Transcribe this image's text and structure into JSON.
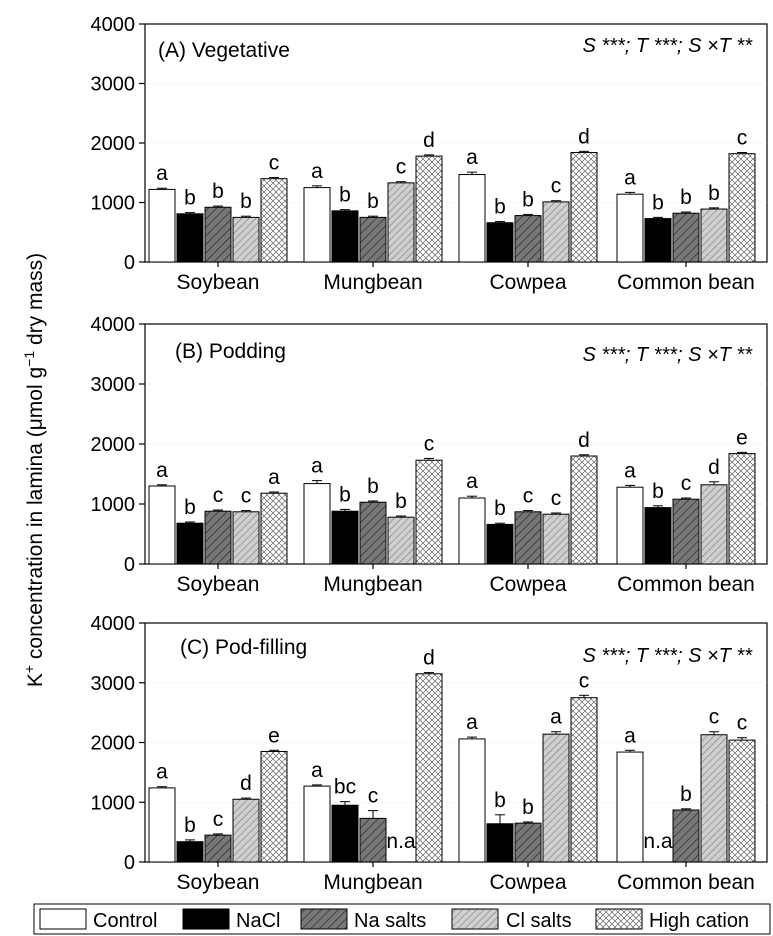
{
  "ylabel_main": "K",
  "ylabel_sup1": "+",
  "ylabel_mid": " concentration in lamina (μmol g",
  "ylabel_sup2": "−1",
  "ylabel_tail": " dry mass)",
  "colors": {
    "Control": "#ffffff",
    "NaCl": "#000000",
    "Na salts": "#777777",
    "Cl salts": "#c8c8c8",
    "High cation": "#ffffff"
  },
  "legend": {
    "entries": [
      "Control",
      "NaCl",
      "Na salts",
      "Cl salts",
      "High cation"
    ],
    "placement": "bottom"
  },
  "chart_data": [
    {
      "type": "bar",
      "title": "(A) Vegetative",
      "annotation": "S ***; T ***; S ×T **",
      "categories": [
        "Soybean",
        "Mungbean",
        "Cowpea",
        "Common bean"
      ],
      "ylim": [
        0,
        4000
      ],
      "yticks": [
        0,
        1000,
        2000,
        3000,
        4000
      ],
      "series": [
        {
          "name": "Control",
          "values": [
            1220,
            1250,
            1470,
            1140
          ],
          "errors": [
            20,
            30,
            40,
            30
          ],
          "letters": [
            "a",
            "a",
            "a",
            "a"
          ]
        },
        {
          "name": "NaCl",
          "values": [
            810,
            860,
            660,
            730
          ],
          "errors": [
            20,
            20,
            20,
            20
          ],
          "letters": [
            "b",
            "b",
            "b",
            "b"
          ]
        },
        {
          "name": "Na salts",
          "values": [
            920,
            750,
            780,
            820
          ],
          "errors": [
            20,
            20,
            20,
            20
          ],
          "letters": [
            "b",
            "b",
            "b",
            "b"
          ]
        },
        {
          "name": "Cl salts",
          "values": [
            750,
            1330,
            1010,
            890
          ],
          "errors": [
            20,
            20,
            20,
            20
          ],
          "letters": [
            "b",
            "c",
            "c",
            "b"
          ]
        },
        {
          "name": "High cation",
          "values": [
            1400,
            1780,
            1840,
            1820
          ],
          "errors": [
            20,
            20,
            20,
            20
          ],
          "letters": [
            "c",
            "d",
            "d",
            "c"
          ]
        }
      ]
    },
    {
      "type": "bar",
      "title": "(B) Podding",
      "annotation": "S ***; T ***; S ×T **",
      "categories": [
        "Soybean",
        "Mungbean",
        "Cowpea",
        "Common bean"
      ],
      "ylim": [
        0,
        4000
      ],
      "yticks": [
        0,
        1000,
        2000,
        3000,
        4000
      ],
      "series": [
        {
          "name": "Control",
          "values": [
            1300,
            1340,
            1100,
            1280
          ],
          "errors": [
            20,
            50,
            30,
            30
          ],
          "letters": [
            "a",
            "a",
            "a",
            "a"
          ]
        },
        {
          "name": "NaCl",
          "values": [
            680,
            880,
            660,
            940
          ],
          "errors": [
            20,
            30,
            20,
            30
          ],
          "letters": [
            "b",
            "b",
            "b",
            "b"
          ]
        },
        {
          "name": "Na salts",
          "values": [
            880,
            1030,
            870,
            1080
          ],
          "errors": [
            20,
            20,
            20,
            20
          ],
          "letters": [
            "c",
            "b",
            "c",
            "c"
          ]
        },
        {
          "name": "Cl salts",
          "values": [
            870,
            780,
            830,
            1320
          ],
          "errors": [
            20,
            20,
            20,
            50
          ],
          "letters": [
            "c",
            "b",
            "c",
            "d"
          ]
        },
        {
          "name": "High cation",
          "values": [
            1180,
            1730,
            1800,
            1840
          ],
          "errors": [
            20,
            30,
            20,
            20
          ],
          "letters": [
            "a",
            "c",
            "d",
            "e"
          ]
        }
      ]
    },
    {
      "type": "bar",
      "title": "(C) Pod-filling",
      "annotation": "S ***; T ***; S ×T **",
      "categories": [
        "Soybean",
        "Mungbean",
        "Cowpea",
        "Common bean"
      ],
      "ylim": [
        0,
        4000
      ],
      "yticks": [
        0,
        1000,
        2000,
        3000,
        4000
      ],
      "series": [
        {
          "name": "Control",
          "values": [
            1240,
            1270,
            2060,
            1840
          ],
          "errors": [
            20,
            20,
            30,
            30
          ],
          "letters": [
            "a",
            "a",
            "a",
            "a"
          ]
        },
        {
          "name": "NaCl",
          "values": [
            340,
            950,
            640,
            null
          ],
          "errors": [
            30,
            60,
            150,
            0
          ],
          "letters": [
            "b",
            "bc",
            "b",
            "n.a"
          ]
        },
        {
          "name": "Na salts",
          "values": [
            450,
            730,
            650,
            870
          ],
          "errors": [
            20,
            130,
            20,
            20
          ],
          "letters": [
            "c",
            "c",
            "b",
            "b"
          ]
        },
        {
          "name": "Cl salts",
          "values": [
            1050,
            null,
            2140,
            2130
          ],
          "errors": [
            20,
            0,
            40,
            50
          ],
          "letters": [
            "d",
            "n.a",
            "a",
            "c"
          ]
        },
        {
          "name": "High cation",
          "values": [
            1850,
            3150,
            2750,
            2040
          ],
          "errors": [
            20,
            20,
            40,
            40
          ],
          "letters": [
            "e",
            "d",
            "c",
            "c"
          ]
        }
      ]
    }
  ]
}
